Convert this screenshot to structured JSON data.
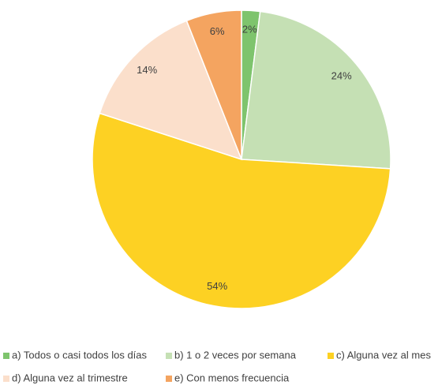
{
  "chart_data": {
    "type": "pie",
    "categories": [
      "a) Todos o casi todos los días",
      "b) 1 o 2 veces por semana",
      "c) Alguna vez al mes",
      "d) Alguna vez al trimestre",
      "e) Con menos frecuencia"
    ],
    "values": [
      2,
      24,
      54,
      14,
      6
    ],
    "value_labels": [
      "2%",
      "24%",
      "54%",
      "14%",
      "6%"
    ],
    "colors": [
      "#7ec46d",
      "#c5e0b4",
      "#fdd123",
      "#fbdfcb",
      "#f4a460"
    ],
    "legend": "bottom"
  }
}
